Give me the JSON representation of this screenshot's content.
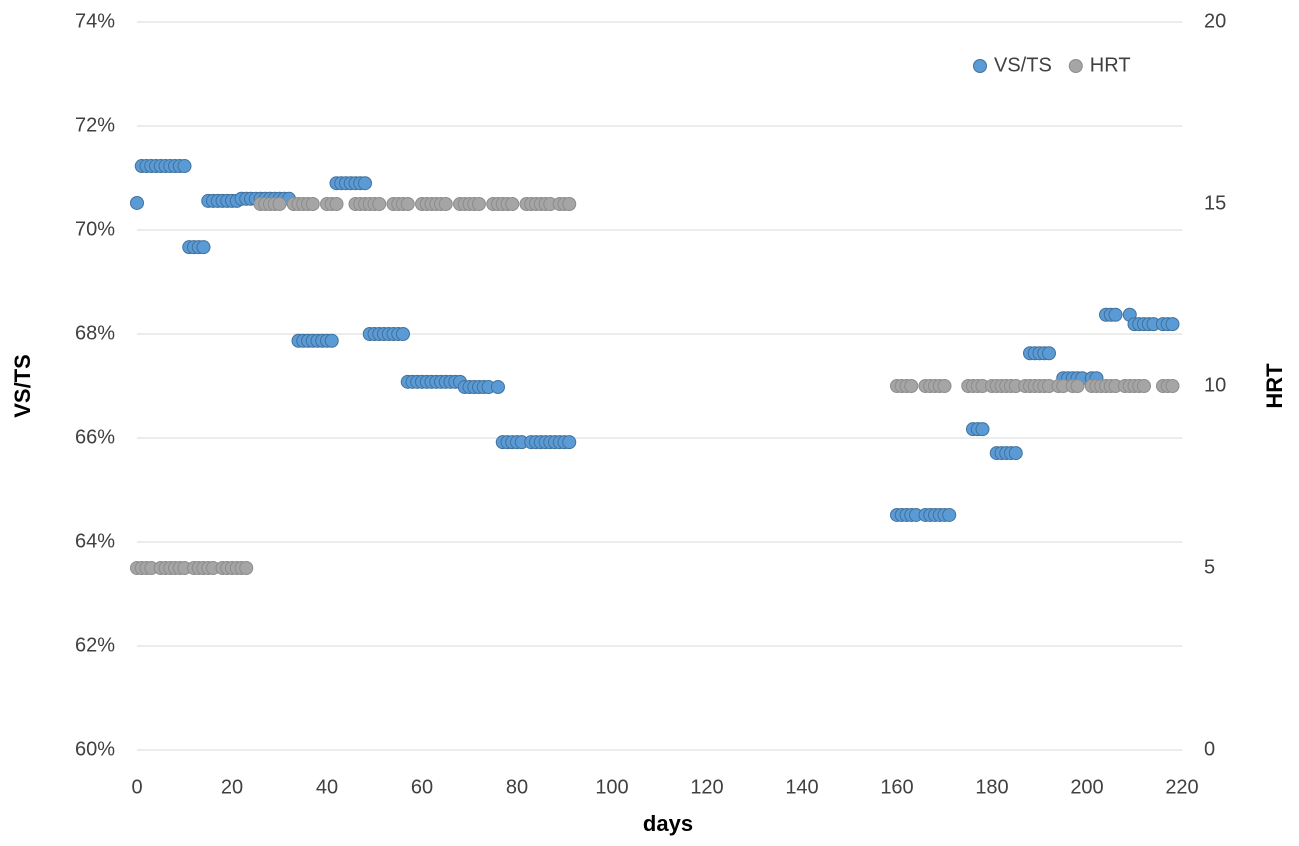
{
  "chart_data": {
    "type": "scatter",
    "x_label": "days",
    "y_label": "VS/TS",
    "y2_label": "HRT",
    "xlim": [
      0,
      220
    ],
    "xticks": [
      0,
      20,
      40,
      60,
      80,
      100,
      120,
      140,
      160,
      180,
      200,
      220
    ],
    "ylim": [
      60,
      74
    ],
    "yticks": [
      {
        "value": 60,
        "label": "60%"
      },
      {
        "value": 62,
        "label": "62%"
      },
      {
        "value": 64,
        "label": "64%"
      },
      {
        "value": 66,
        "label": "66%"
      },
      {
        "value": 68,
        "label": "68%"
      },
      {
        "value": 70,
        "label": "70%"
      },
      {
        "value": 72,
        "label": "72%"
      },
      {
        "value": 74,
        "label": "74%"
      }
    ],
    "y2lim": [
      0,
      20
    ],
    "y2ticks": [
      0,
      5,
      10,
      15,
      20
    ],
    "grid": true,
    "legend": "top-right",
    "series": [
      {
        "name": "VS/TS",
        "color": "#5b9bd5",
        "x": [
          0,
          1,
          2,
          3,
          4,
          5,
          6,
          7,
          8,
          9,
          10,
          11,
          12,
          13,
          14,
          15,
          16,
          17,
          18,
          19,
          20,
          21,
          22,
          23,
          24,
          25,
          26,
          27,
          28,
          29,
          30,
          31,
          32,
          34,
          35,
          36,
          37,
          38,
          39,
          40,
          41,
          42,
          43,
          44,
          45,
          46,
          47,
          48,
          49,
          50,
          51,
          52,
          53,
          54,
          55,
          56,
          57,
          58,
          59,
          60,
          61,
          62,
          63,
          64,
          65,
          66,
          67,
          68,
          69,
          70,
          71,
          72,
          73,
          74,
          76,
          77,
          78,
          79,
          80,
          81,
          83,
          84,
          85,
          86,
          87,
          88,
          89,
          90,
          91,
          160,
          161,
          162,
          163,
          164,
          166,
          167,
          168,
          169,
          170,
          171,
          176,
          177,
          178,
          181,
          182,
          183,
          184,
          185,
          188,
          189,
          190,
          191,
          192,
          195,
          196,
          197,
          198,
          199,
          201,
          202,
          204,
          205,
          206,
          209,
          210,
          211,
          212,
          213,
          214,
          216,
          217,
          218
        ],
        "values": [
          70.52,
          71.23,
          71.23,
          71.23,
          71.23,
          71.23,
          71.23,
          71.23,
          71.23,
          71.23,
          71.23,
          69.67,
          69.67,
          69.67,
          69.67,
          70.56,
          70.56,
          70.56,
          70.56,
          70.56,
          70.56,
          70.56,
          70.6,
          70.6,
          70.6,
          70.6,
          70.6,
          70.6,
          70.6,
          70.6,
          70.6,
          70.6,
          70.6,
          67.87,
          67.87,
          67.87,
          67.87,
          67.87,
          67.87,
          67.87,
          67.87,
          70.9,
          70.9,
          70.9,
          70.9,
          70.9,
          70.9,
          70.9,
          68.0,
          68.0,
          68.0,
          68.0,
          68.0,
          68.0,
          68.0,
          68.0,
          67.08,
          67.08,
          67.08,
          67.08,
          67.08,
          67.08,
          67.08,
          67.08,
          67.08,
          67.08,
          67.08,
          67.08,
          66.98,
          66.98,
          66.98,
          66.98,
          66.98,
          66.98,
          66.98,
          65.92,
          65.92,
          65.92,
          65.92,
          65.92,
          65.92,
          65.92,
          65.92,
          65.92,
          65.92,
          65.92,
          65.92,
          65.92,
          65.92,
          64.52,
          64.52,
          64.52,
          64.52,
          64.52,
          64.52,
          64.52,
          64.52,
          64.52,
          64.52,
          64.52,
          66.17,
          66.17,
          66.17,
          65.71,
          65.71,
          65.71,
          65.71,
          65.71,
          67.63,
          67.63,
          67.63,
          67.63,
          67.63,
          67.15,
          67.15,
          67.15,
          67.15,
          67.15,
          67.15,
          67.15,
          68.37,
          68.37,
          68.37,
          68.37,
          68.19,
          68.19,
          68.19,
          68.19,
          68.19,
          68.19,
          68.19,
          68.19
        ]
      },
      {
        "name": "HRT",
        "color": "#a5a5a5",
        "axis": "y2",
        "x": [
          0,
          1,
          2,
          3,
          5,
          6,
          7,
          8,
          9,
          10,
          12,
          13,
          14,
          15,
          16,
          18,
          19,
          20,
          21,
          22,
          23,
          26,
          27,
          28,
          29,
          30,
          33,
          34,
          35,
          36,
          37,
          40,
          41,
          42,
          46,
          47,
          48,
          49,
          50,
          51,
          54,
          55,
          56,
          57,
          60,
          61,
          62,
          63,
          64,
          65,
          68,
          69,
          70,
          71,
          72,
          75,
          76,
          77,
          78,
          79,
          82,
          83,
          84,
          85,
          86,
          87,
          89,
          90,
          91,
          160,
          161,
          162,
          163,
          166,
          167,
          168,
          169,
          170,
          175,
          176,
          177,
          178,
          180,
          181,
          182,
          183,
          184,
          185,
          187,
          188,
          189,
          190,
          191,
          192,
          194,
          195,
          197,
          198,
          201,
          202,
          203,
          204,
          205,
          206,
          208,
          209,
          210,
          211,
          212,
          216,
          217,
          218
        ],
        "values": [
          5,
          5,
          5,
          5,
          5,
          5,
          5,
          5,
          5,
          5,
          5,
          5,
          5,
          5,
          5,
          5,
          5,
          5,
          5,
          5,
          5,
          15,
          15,
          15,
          15,
          15,
          15,
          15,
          15,
          15,
          15,
          15,
          15,
          15,
          15,
          15,
          15,
          15,
          15,
          15,
          15,
          15,
          15,
          15,
          15,
          15,
          15,
          15,
          15,
          15,
          15,
          15,
          15,
          15,
          15,
          15,
          15,
          15,
          15,
          15,
          15,
          15,
          15,
          15,
          15,
          15,
          15,
          15,
          15,
          10,
          10,
          10,
          10,
          10,
          10,
          10,
          10,
          10,
          10,
          10,
          10,
          10,
          10,
          10,
          10,
          10,
          10,
          10,
          10,
          10,
          10,
          10,
          10,
          10,
          10,
          10,
          10,
          10,
          10,
          10,
          10,
          10,
          10,
          10,
          10,
          10,
          10,
          10,
          10,
          10,
          10,
          10
        ]
      }
    ]
  }
}
